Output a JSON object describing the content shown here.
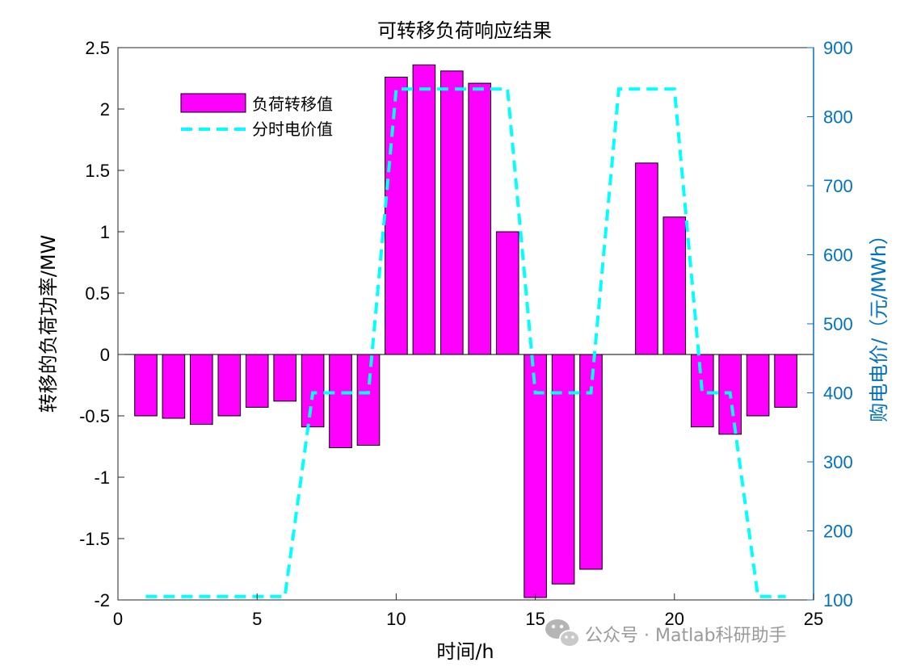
{
  "chart_data": {
    "type": "bar+line",
    "title": "可转移负荷响应结果",
    "xlabel": "时间/h",
    "ylabel_left": "转移的负荷功率/MW",
    "ylabel_right": "购电电价/（元/MWh）",
    "xlim": [
      0,
      25
    ],
    "ylim_left": [
      -2,
      2.5
    ],
    "ylim_right": [
      100,
      900
    ],
    "x_ticks": [
      0,
      5,
      10,
      15,
      20,
      25
    ],
    "y_ticks_left": [
      -2,
      -1.5,
      -1,
      -0.5,
      0,
      0.5,
      1,
      1.5,
      2,
      2.5
    ],
    "y_ticks_right": [
      100,
      200,
      300,
      400,
      500,
      600,
      700,
      800,
      900
    ],
    "grid": false,
    "legend_position": "top-left",
    "series": [
      {
        "name": "负荷转移值",
        "kind": "bar",
        "axis": "left",
        "color": "#ff00ff",
        "x": [
          1,
          2,
          3,
          4,
          5,
          6,
          7,
          8,
          9,
          10,
          11,
          12,
          13,
          14,
          15,
          16,
          17,
          18,
          19,
          20,
          21,
          22,
          23,
          24
        ],
        "values": [
          -0.5,
          -0.52,
          -0.57,
          -0.5,
          -0.43,
          -0.38,
          -0.59,
          -0.76,
          -0.74,
          2.26,
          2.36,
          2.31,
          2.21,
          1.0,
          -1.98,
          -1.87,
          -1.75,
          0,
          1.56,
          1.12,
          -0.59,
          -0.65,
          -0.5,
          -0.43
        ]
      },
      {
        "name": "分时电价值",
        "kind": "line",
        "style": "dashed",
        "axis": "right",
        "color": "#00ffff",
        "x": [
          1,
          6,
          7,
          9,
          10,
          14,
          15,
          17,
          18,
          20,
          21,
          22,
          23,
          24
        ],
        "values": [
          105,
          105,
          400,
          400,
          840,
          840,
          400,
          400,
          840,
          840,
          400,
          400,
          105,
          105
        ]
      }
    ]
  },
  "watermark": {
    "text": "公众号 · Matlab科研助手",
    "icon": "wechat-icon"
  }
}
